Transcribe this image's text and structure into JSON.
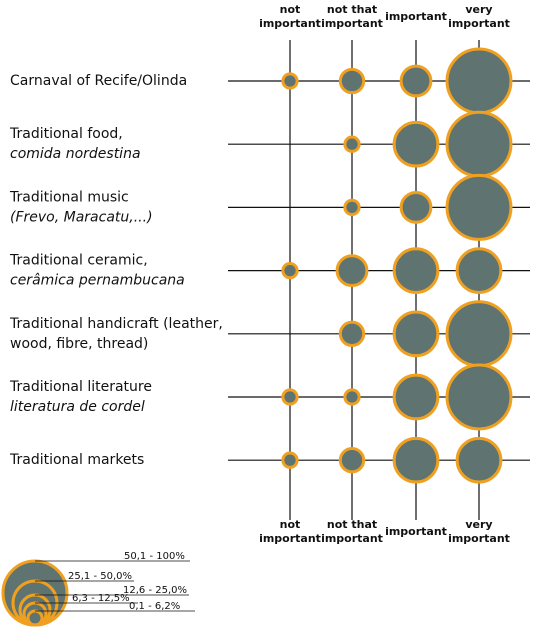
{
  "chart_data": {
    "type": "bubble-grid",
    "columns": [
      {
        "lines": [
          "not",
          "important"
        ]
      },
      {
        "lines": [
          "not that",
          "important"
        ]
      },
      {
        "lines": [
          "important"
        ]
      },
      {
        "lines": [
          "very",
          "important"
        ]
      }
    ],
    "rows": [
      {
        "lines": [
          "Carnaval of Recife/Olinda"
        ],
        "italic": [
          false
        ],
        "values": [
          3,
          8,
          13,
          60
        ]
      },
      {
        "lines": [
          "Traditional food,",
          "comida nordestina"
        ],
        "italic": [
          false,
          true
        ],
        "values": [
          null,
          3,
          28,
          60
        ]
      },
      {
        "lines": [
          "Traditional music",
          "(Frevo, Maracatu,...)"
        ],
        "italic": [
          false,
          true
        ],
        "values": [
          null,
          3,
          13,
          60
        ]
      },
      {
        "lines": [
          "Traditional ceramic,",
          "cerâmica pernambucana"
        ],
        "italic": [
          false,
          true
        ],
        "values": [
          3,
          13,
          28,
          28
        ]
      },
      {
        "lines": [
          "Traditional handicraft (leather,",
          "wood, fibre, thread)"
        ],
        "italic": [
          false,
          false
        ],
        "values": [
          null,
          8,
          28,
          60
        ]
      },
      {
        "lines": [
          "Traditional literature",
          "literatura de cordel"
        ],
        "italic": [
          false,
          true
        ],
        "values": [
          3,
          3,
          28,
          60
        ]
      },
      {
        "lines": [
          "Traditional markets"
        ],
        "italic": [
          false
        ],
        "values": [
          3,
          8,
          28,
          28
        ]
      }
    ],
    "fill": "#5f7470",
    "stroke": "#f0a020",
    "legend": [
      "50,1 - 100%",
      "25,1 - 50,0%",
      "12,6 - 25,0%",
      "6,3 - 12,5%",
      "0,1 - 6,2%"
    ]
  }
}
